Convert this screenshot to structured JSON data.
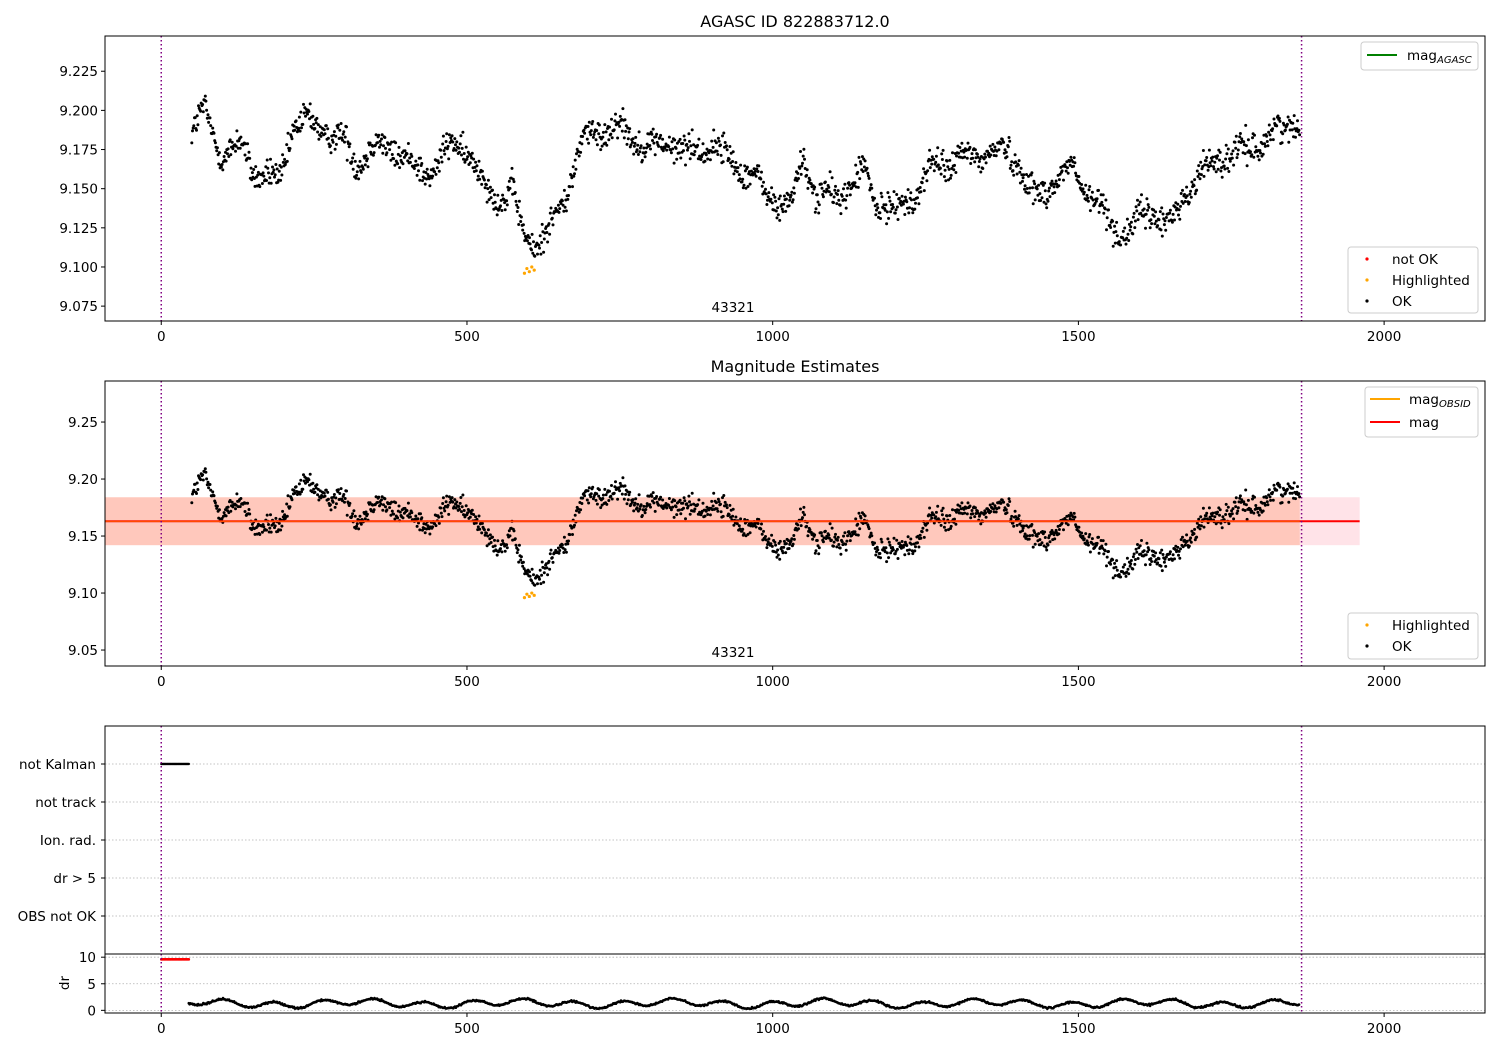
{
  "chart_data": [
    {
      "type": "scatter",
      "title": "AGASC ID 822883712.0",
      "xlabel": "",
      "ylabel": "",
      "xlim": [
        -92,
        2165
      ],
      "ylim": [
        9.0655,
        9.2475
      ],
      "xticks": [
        0,
        500,
        1000,
        1500,
        2000
      ],
      "yticks": [
        9.075,
        9.1,
        9.125,
        9.15,
        9.175,
        9.2,
        9.225
      ],
      "ytick_labels": [
        "9.075",
        "9.100",
        "9.125",
        "9.150",
        "9.175",
        "9.200",
        "9.225"
      ],
      "vlines": [
        0,
        1865
      ],
      "annotation": {
        "text": "43321",
        "x": 930,
        "y": 9.072
      },
      "legend_lines": [
        {
          "label": "mag",
          "sub": "AGASC",
          "color": "#008000"
        }
      ],
      "legend_points": [
        {
          "label": "not OK",
          "color": "#ff0000"
        },
        {
          "label": "Highlighted",
          "color": "#ffa500"
        },
        {
          "label": "OK",
          "color": "#000000"
        }
      ],
      "mag_band": null,
      "mag_lines": [],
      "highlighted": [
        [
          594,
          9.096
        ],
        [
          598,
          9.099
        ],
        [
          602,
          9.097
        ],
        [
          606,
          9.1
        ],
        [
          610,
          9.098
        ]
      ],
      "ok_series_knots": [
        [
          50,
          9.188
        ],
        [
          70,
          9.2
        ],
        [
          85,
          9.183
        ],
        [
          100,
          9.172
        ],
        [
          130,
          9.178
        ],
        [
          150,
          9.162
        ],
        [
          175,
          9.157
        ],
        [
          195,
          9.155
        ],
        [
          215,
          9.19
        ],
        [
          240,
          9.194
        ],
        [
          270,
          9.186
        ],
        [
          300,
          9.18
        ],
        [
          320,
          9.166
        ],
        [
          350,
          9.178
        ],
        [
          380,
          9.176
        ],
        [
          410,
          9.165
        ],
        [
          440,
          9.16
        ],
        [
          460,
          9.17
        ],
        [
          480,
          9.18
        ],
        [
          500,
          9.174
        ],
        [
          520,
          9.158
        ],
        [
          540,
          9.148
        ],
        [
          560,
          9.143
        ],
        [
          575,
          9.148
        ],
        [
          590,
          9.124
        ],
        [
          610,
          9.114
        ],
        [
          625,
          9.118
        ],
        [
          645,
          9.132
        ],
        [
          665,
          9.15
        ],
        [
          690,
          9.182
        ],
        [
          720,
          9.187
        ],
        [
          750,
          9.19
        ],
        [
          775,
          9.182
        ],
        [
          800,
          9.176
        ],
        [
          830,
          9.18
        ],
        [
          860,
          9.173
        ],
        [
          900,
          9.178
        ],
        [
          930,
          9.169
        ],
        [
          960,
          9.16
        ],
        [
          990,
          9.148
        ],
        [
          1010,
          9.14
        ],
        [
          1030,
          9.14
        ],
        [
          1050,
          9.17
        ],
        [
          1070,
          9.146
        ],
        [
          1100,
          9.145
        ],
        [
          1130,
          9.152
        ],
        [
          1150,
          9.162
        ],
        [
          1170,
          9.14
        ],
        [
          1200,
          9.137
        ],
        [
          1230,
          9.144
        ],
        [
          1260,
          9.164
        ],
        [
          1300,
          9.168
        ],
        [
          1340,
          9.172
        ],
        [
          1380,
          9.175
        ],
        [
          1400,
          9.168
        ],
        [
          1430,
          9.143
        ],
        [
          1460,
          9.155
        ],
        [
          1490,
          9.163
        ],
        [
          1510,
          9.15
        ],
        [
          1540,
          9.136
        ],
        [
          1560,
          9.124
        ],
        [
          1580,
          9.122
        ],
        [
          1600,
          9.131
        ],
        [
          1620,
          9.136
        ],
        [
          1650,
          9.126
        ],
        [
          1670,
          9.144
        ],
        [
          1700,
          9.16
        ],
        [
          1730,
          9.17
        ],
        [
          1760,
          9.172
        ],
        [
          1790,
          9.178
        ],
        [
          1810,
          9.183
        ],
        [
          1840,
          9.19
        ],
        [
          1862,
          9.193
        ]
      ]
    },
    {
      "type": "scatter",
      "title": "Magnitude Estimates",
      "xlabel": "",
      "ylabel": "",
      "xlim": [
        -92,
        2165
      ],
      "ylim": [
        9.036,
        9.286
      ],
      "xticks": [
        0,
        500,
        1000,
        1500,
        2000
      ],
      "yticks": [
        9.05,
        9.1,
        9.15,
        9.2,
        9.25
      ],
      "ytick_labels": [
        "9.05",
        "9.10",
        "9.15",
        "9.20",
        "9.25"
      ],
      "vlines": [
        0,
        1865
      ],
      "annotation": {
        "text": "43321",
        "x": 930,
        "y": 9.042
      },
      "legend_lines": [
        {
          "label": "mag",
          "sub": "OBSID",
          "color": "#ffa500"
        },
        {
          "label": "mag",
          "sub": "",
          "color": "#ff0000"
        }
      ],
      "legend_points": [
        {
          "label": "Highlighted",
          "color": "#ffa500"
        },
        {
          "label": "OK",
          "color": "#000000"
        }
      ],
      "mag_value": 9.163,
      "mag_band": {
        "lower": 9.142,
        "upper": 9.184,
        "x_range": [
          -92,
          1960
        ]
      },
      "highlighted": [
        [
          594,
          9.096
        ],
        [
          598,
          9.099
        ],
        [
          602,
          9.097
        ],
        [
          606,
          9.1
        ],
        [
          610,
          9.098
        ]
      ]
    },
    {
      "type": "scatter",
      "title": "",
      "xlabel": "",
      "ylabel": "",
      "categories": [
        "not Kalman",
        "not track",
        "Ion. rad.",
        "dr > 5",
        "OBS not OK"
      ],
      "flag_ranges": [
        {
          "category": "not Kalman",
          "x_start": 0,
          "x_end": 45
        }
      ],
      "vlines": [
        0,
        1865
      ]
    },
    {
      "type": "scatter",
      "title": "",
      "xlabel": "",
      "ylabel": "dr",
      "xlim": [
        -92,
        2165
      ],
      "ylim": [
        -0.5,
        10.6
      ],
      "xticks": [
        0,
        500,
        1000,
        1500,
        2000
      ],
      "yticks": [
        0,
        5,
        10
      ],
      "ytick_labels": [
        "0",
        "5",
        "10"
      ],
      "vlines": [
        0,
        1865
      ],
      "red_points_range": {
        "x_start": 0,
        "x_end": 45,
        "y": 9.6
      },
      "dr_range": {
        "x_start": 45,
        "x_end": 1862,
        "min": 0.3,
        "max": 2.8
      }
    }
  ]
}
